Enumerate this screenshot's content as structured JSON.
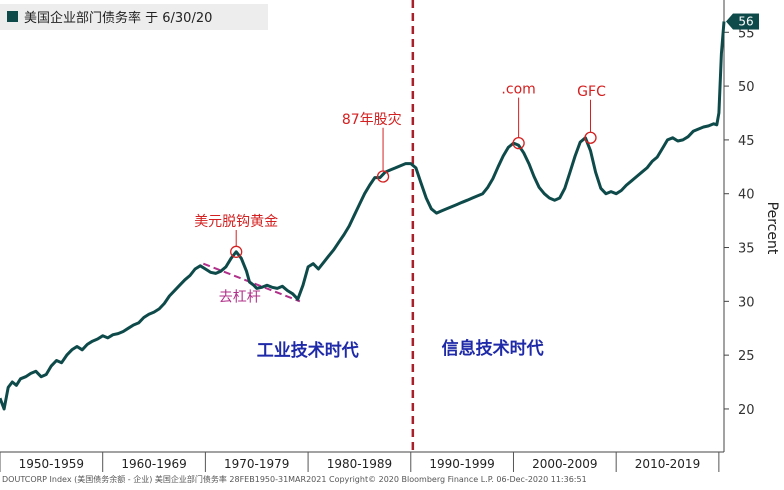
{
  "chart_data": {
    "type": "line",
    "title": "美国企业部门债务率 于 6/30/20",
    "ylabel": "Percent",
    "ylim": [
      16,
      58
    ],
    "yticks": [
      20,
      25,
      30,
      35,
      40,
      45,
      50,
      55
    ],
    "x_range": [
      1950.0,
      2020.5
    ],
    "grid": false,
    "last_value_label": "56",
    "decades": [
      "1950-1959",
      "1960-1969",
      "1970-1979",
      "1980-1989",
      "1990-1999",
      "2000-2009",
      "2010-2019"
    ],
    "decade_starts": [
      1950,
      1960,
      1970,
      1980,
      1990,
      2000,
      2010,
      2020
    ],
    "divider_x": 1990.2,
    "series": [
      {
        "color": "#0e4a4a",
        "x": [
          1950.0,
          1950.4,
          1950.8,
          1951.2,
          1951.6,
          1952.0,
          1952.5,
          1953.0,
          1953.5,
          1954.0,
          1954.5,
          1955.0,
          1955.5,
          1956.0,
          1956.5,
          1957.0,
          1957.5,
          1958.0,
          1958.5,
          1959.0,
          1959.5,
          1960.0,
          1960.5,
          1961.0,
          1961.5,
          1962.0,
          1962.5,
          1963.0,
          1963.5,
          1964.0,
          1964.5,
          1965.0,
          1965.5,
          1966.0,
          1966.5,
          1967.0,
          1967.5,
          1968.0,
          1968.5,
          1969.0,
          1969.5,
          1970.0,
          1970.5,
          1971.0,
          1971.5,
          1972.0,
          1972.5,
          1973.0,
          1973.5,
          1974.0,
          1974.3,
          1974.7,
          1975.0,
          1975.5,
          1976.0,
          1976.5,
          1977.0,
          1977.5,
          1978.0,
          1978.5,
          1979.0,
          1979.5,
          1980.0,
          1980.5,
          1981.0,
          1981.5,
          1982.0,
          1982.5,
          1983.0,
          1983.5,
          1984.0,
          1984.5,
          1985.0,
          1985.5,
          1986.0,
          1986.5,
          1987.0,
          1987.5,
          1988.0,
          1988.5,
          1989.0,
          1989.5,
          1990.0,
          1990.5,
          1991.0,
          1991.5,
          1992.0,
          1992.5,
          1993.0,
          1993.5,
          1994.0,
          1994.5,
          1995.0,
          1995.5,
          1996.0,
          1996.5,
          1997.0,
          1997.5,
          1998.0,
          1998.5,
          1999.0,
          1999.5,
          2000.0,
          2000.5,
          2001.0,
          2001.5,
          2002.0,
          2002.5,
          2003.0,
          2003.5,
          2004.0,
          2004.5,
          2005.0,
          2005.5,
          2006.0,
          2006.5,
          2007.0,
          2007.5,
          2008.0,
          2008.5,
          2009.0,
          2009.5,
          2010.0,
          2010.5,
          2011.0,
          2011.5,
          2012.0,
          2012.5,
          2013.0,
          2013.5,
          2014.0,
          2014.5,
          2015.0,
          2015.5,
          2016.0,
          2016.5,
          2017.0,
          2017.5,
          2018.0,
          2018.5,
          2019.0,
          2019.5,
          2019.8,
          2020.0,
          2020.25,
          2020.5
        ],
        "values": [
          21.0,
          20.0,
          22.0,
          22.5,
          22.2,
          22.8,
          23.0,
          23.3,
          23.5,
          23.0,
          23.2,
          24.0,
          24.5,
          24.3,
          25.0,
          25.5,
          25.8,
          25.5,
          26.0,
          26.3,
          26.5,
          26.8,
          26.6,
          26.9,
          27.0,
          27.2,
          27.5,
          27.8,
          28.0,
          28.5,
          28.8,
          29.0,
          29.3,
          29.8,
          30.5,
          31.0,
          31.5,
          32.0,
          32.4,
          33.0,
          33.3,
          33.0,
          32.7,
          32.6,
          32.8,
          33.2,
          34.0,
          34.6,
          34.0,
          32.8,
          31.8,
          31.5,
          31.2,
          31.3,
          31.5,
          31.3,
          31.2,
          31.4,
          31.0,
          30.7,
          30.2,
          31.5,
          33.2,
          33.5,
          33.0,
          33.6,
          34.2,
          34.8,
          35.5,
          36.2,
          37.0,
          38.0,
          39.0,
          40.0,
          40.8,
          41.5,
          41.5,
          42.0,
          42.2,
          42.4,
          42.6,
          42.8,
          42.8,
          42.4,
          41.0,
          39.6,
          38.6,
          38.2,
          38.4,
          38.6,
          38.8,
          39.0,
          39.2,
          39.4,
          39.6,
          39.8,
          40.0,
          40.6,
          41.4,
          42.5,
          43.5,
          44.3,
          44.7,
          44.5,
          43.8,
          42.8,
          41.6,
          40.6,
          40.0,
          39.6,
          39.4,
          39.6,
          40.5,
          42.0,
          43.5,
          44.8,
          45.2,
          44.0,
          42.0,
          40.5,
          40.0,
          40.2,
          40.0,
          40.3,
          40.8,
          41.2,
          41.6,
          42.0,
          42.4,
          43.0,
          43.4,
          44.2,
          45.0,
          45.2,
          44.9,
          45.0,
          45.3,
          45.8,
          46.0,
          46.2,
          46.3,
          46.5,
          46.4,
          47.5,
          53.0,
          56.0
        ]
      }
    ],
    "annotations": [
      {
        "text": "美元脱钩黄金",
        "x": 1973.0,
        "y": 34.6,
        "color": "#d42020"
      },
      {
        "text": "87年股灾",
        "x": 1987.3,
        "y": 41.6,
        "color": "#d42020"
      },
      {
        "text": ".com",
        "x": 2000.5,
        "y": 44.7,
        "color": "#d42020"
      },
      {
        "text": "GFC",
        "x": 2007.5,
        "y": 45.2,
        "color": "#d42020"
      }
    ],
    "deleverage_label": "去杠杆",
    "deleverage_color": "#b0308a",
    "deleverage_line": {
      "x1": 1969.8,
      "y1": 33.5,
      "x2": 1979.2,
      "y2": 30.0
    },
    "era_left": "工业技术时代",
    "era_right": "信息技术时代",
    "era_color": "#1f2aa8",
    "footer_text": "DOUTCORP Index (美国债务余额 - 企业) 美国企业部门债务率  28FEB1950-31MAR2021   Copyright© 2020 Bloomberg Finance L.P.   06-Dec-2020 11:36:51"
  }
}
